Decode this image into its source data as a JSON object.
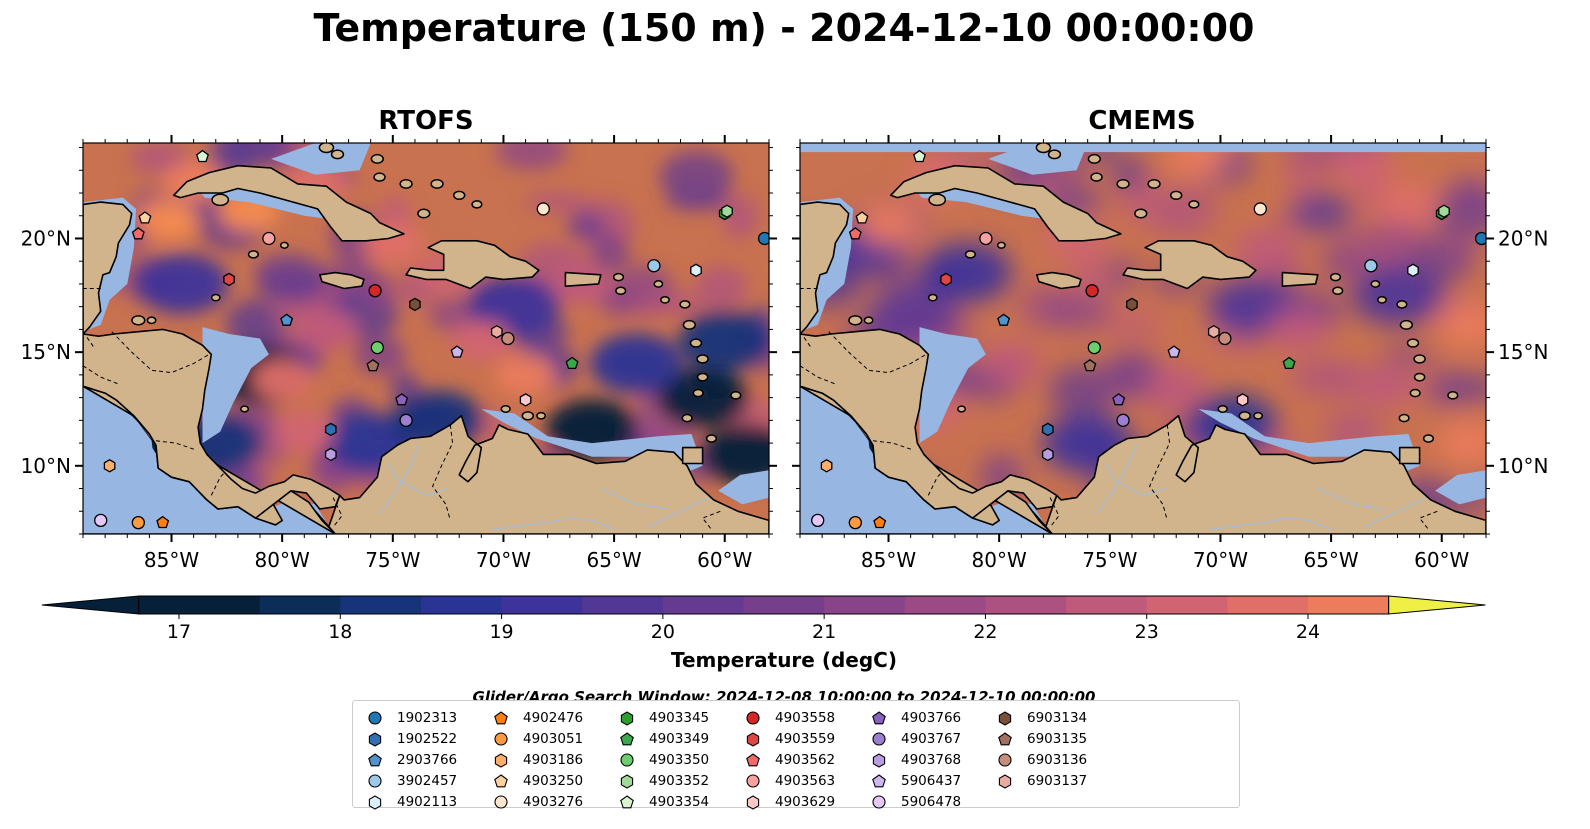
{
  "figure": {
    "title": "Temperature (150 m) - 2024-12-10 00:00:00",
    "colors": {
      "land": "#d2b48c",
      "shallow_water": "#97b6e1",
      "coast": "#000000",
      "ocean_base": "#c9724f"
    }
  },
  "chart_data": {
    "type": "heatmap",
    "panels": [
      {
        "title": "RTOFS",
        "xlim": [
          -89,
          -58
        ],
        "ylim": [
          7,
          24.2
        ],
        "warm_spots": [
          {
            "lon": -85.2,
            "lat": 20.8,
            "value": 24.5
          },
          {
            "lon": -81.5,
            "lat": 21.2,
            "value": 24.6
          },
          {
            "lon": -78.5,
            "lat": 22.3,
            "value": 23.6
          },
          {
            "lon": -75.0,
            "lat": 19.8,
            "value": 23.6
          },
          {
            "lon": -72.5,
            "lat": 18.5,
            "value": 23.2
          },
          {
            "lon": -69.0,
            "lat": 14.0,
            "value": 24.2
          },
          {
            "lon": -71.0,
            "lat": 15.5,
            "value": 23.0
          },
          {
            "lon": -80.0,
            "lat": 13.8,
            "value": 23.5
          },
          {
            "lon": -79.0,
            "lat": 11.5,
            "value": 23.0
          },
          {
            "lon": -84.0,
            "lat": 22.5,
            "value": 24.0
          },
          {
            "lon": -66.5,
            "lat": 18.0,
            "value": 22.8
          },
          {
            "lon": -78.0,
            "lat": 16.0,
            "value": 22.5
          }
        ],
        "cold_spots": [
          {
            "lon": -81.0,
            "lat": 14.0,
            "value": 17.0
          },
          {
            "lon": -83.0,
            "lat": 11.0,
            "value": 18.2
          },
          {
            "lon": -66.0,
            "lat": 11.6,
            "value": 17.0
          },
          {
            "lon": -61.0,
            "lat": 13.0,
            "value": 17.0
          },
          {
            "lon": -59.0,
            "lat": 10.5,
            "value": 17.0
          },
          {
            "lon": -60.0,
            "lat": 15.5,
            "value": 18.0
          },
          {
            "lon": -64.0,
            "lat": 14.5,
            "value": 18.5
          },
          {
            "lon": -69.5,
            "lat": 17.0,
            "value": 19.0
          },
          {
            "lon": -76.0,
            "lat": 11.0,
            "value": 18.8
          },
          {
            "lon": -84.5,
            "lat": 18.0,
            "value": 19.0
          },
          {
            "lon": -73.0,
            "lat": 12.0,
            "value": 18.0
          }
        ]
      },
      {
        "title": "CMEMS",
        "xlim": [
          -89,
          -58
        ],
        "ylim": [
          7,
          24.2
        ],
        "warm_spots": [
          {
            "lon": -85.0,
            "lat": 20.6,
            "value": 24.0
          },
          {
            "lon": -82.8,
            "lat": 22.5,
            "value": 23.8
          },
          {
            "lon": -71.0,
            "lat": 23.6,
            "value": 24.2
          },
          {
            "lon": -63.5,
            "lat": 23.2,
            "value": 23.2
          },
          {
            "lon": -61.5,
            "lat": 21.5,
            "value": 23.6
          },
          {
            "lon": -58.8,
            "lat": 16.2,
            "value": 24.0
          },
          {
            "lon": -58.8,
            "lat": 11.0,
            "value": 24.0
          },
          {
            "lon": -66.5,
            "lat": 16.0,
            "value": 22.8
          },
          {
            "lon": -83.0,
            "lat": 12.5,
            "value": 23.2
          },
          {
            "lon": -79.5,
            "lat": 14.5,
            "value": 22.5
          },
          {
            "lon": -72.0,
            "lat": 13.5,
            "value": 22.6
          },
          {
            "lon": -62.5,
            "lat": 13.5,
            "value": 22.8
          },
          {
            "lon": -76.5,
            "lat": 20.0,
            "value": 23.0
          },
          {
            "lon": -68.0,
            "lat": 19.5,
            "value": 22.5
          }
        ],
        "cold_spots": [
          {
            "lon": -81.5,
            "lat": 18.5,
            "value": 19.0
          },
          {
            "lon": -76.0,
            "lat": 11.0,
            "value": 19.0
          },
          {
            "lon": -68.5,
            "lat": 17.0,
            "value": 19.5
          },
          {
            "lon": -84.0,
            "lat": 16.5,
            "value": 20.0
          },
          {
            "lon": -62.0,
            "lat": 17.5,
            "value": 19.6
          },
          {
            "lon": -69.5,
            "lat": 11.8,
            "value": 18.6
          },
          {
            "lon": -87.0,
            "lat": 19.5,
            "value": 19.8
          }
        ]
      }
    ],
    "x_ticks": [
      {
        "lon": -85,
        "label": "85°W"
      },
      {
        "lon": -80,
        "label": "80°W"
      },
      {
        "lon": -75,
        "label": "75°W"
      },
      {
        "lon": -70,
        "label": "70°W"
      },
      {
        "lon": -65,
        "label": "65°W"
      },
      {
        "lon": -60,
        "label": "60°W"
      }
    ],
    "y_ticks": [
      {
        "lat": 10,
        "label": "10°N"
      },
      {
        "lat": 15,
        "label": "15°N"
      },
      {
        "lat": 20,
        "label": "20°N"
      }
    ],
    "colorbar": {
      "label": "Temperature (degC)",
      "min": 16.75,
      "max": 24.5,
      "step": 0.5,
      "ticks": [
        17,
        18,
        19,
        20,
        21,
        22,
        23,
        24
      ],
      "extend": "both",
      "colors": [
        "#06203a",
        "#0c2d57",
        "#17337a",
        "#2a3495",
        "#3e3399",
        "#523796",
        "#643b91",
        "#763f8c",
        "#894489",
        "#9c4a85",
        "#ad5181",
        "#c05a7b",
        "#d16472",
        "#e06f68",
        "#ec7c5c",
        "#f58b4f",
        "#f99c43",
        "#fbae3e",
        "#f8c23b",
        "#f3d73d",
        "#eff046"
      ]
    },
    "search_window": "Glider/Argo Search Window: 2024-12-08 10:00:00 to 2024-12-10 00:00:00",
    "floats": [
      {
        "id": "1902313",
        "marker": "circle",
        "color": "#1f77b4",
        "lon": -58.2,
        "lat": 20.0
      },
      {
        "id": "1902522",
        "marker": "hexagon",
        "color": "#2f6fb2",
        "lon": -77.8,
        "lat": 11.6
      },
      {
        "id": "2903766",
        "marker": "pentagon",
        "color": "#4f93cf",
        "lon": -79.8,
        "lat": 16.4
      },
      {
        "id": "3902457",
        "marker": "circle",
        "color": "#9dc9e9",
        "lon": -63.2,
        "lat": 18.8
      },
      {
        "id": "4902113",
        "marker": "hexagon",
        "color": "#dbeefa",
        "lon": -61.3,
        "lat": 18.6
      },
      {
        "id": "4902476",
        "marker": "pentagon",
        "color": "#ff7f0e",
        "lon": -85.4,
        "lat": 7.5
      },
      {
        "id": "4903051",
        "marker": "circle",
        "color": "#fd9b40",
        "lon": -86.5,
        "lat": 7.5
      },
      {
        "id": "4903186",
        "marker": "hexagon",
        "color": "#fdae6b",
        "lon": -87.8,
        "lat": 10.0
      },
      {
        "id": "4903250",
        "marker": "pentagon",
        "color": "#fdd0a2",
        "lon": -86.2,
        "lat": 20.9
      },
      {
        "id": "4903276",
        "marker": "circle",
        "color": "#fee6ce",
        "lon": -68.2,
        "lat": 21.3
      },
      {
        "id": "4903345",
        "marker": "hexagon",
        "color": "#2ca02c",
        "lon": -60.0,
        "lat": 21.1
      },
      {
        "id": "4903349",
        "marker": "pentagon",
        "color": "#38a84a",
        "lon": -66.9,
        "lat": 14.5
      },
      {
        "id": "4903350",
        "marker": "circle",
        "color": "#6dcf6b",
        "lon": -75.7,
        "lat": 15.2
      },
      {
        "id": "4903352",
        "marker": "hexagon",
        "color": "#a1d99b",
        "lon": -59.9,
        "lat": 21.2
      },
      {
        "id": "4903354",
        "marker": "pentagon",
        "color": "#d9f5d2",
        "lon": -83.6,
        "lat": 23.6
      },
      {
        "id": "4903558",
        "marker": "circle",
        "color": "#d62728",
        "lon": -75.8,
        "lat": 17.7
      },
      {
        "id": "4903559",
        "marker": "hexagon",
        "color": "#e04545",
        "lon": -82.4,
        "lat": 18.2
      },
      {
        "id": "4903562",
        "marker": "pentagon",
        "color": "#f06a6a",
        "lon": -86.5,
        "lat": 20.2
      },
      {
        "id": "4903563",
        "marker": "circle",
        "color": "#f7a1a1",
        "lon": -80.6,
        "lat": 20.0
      },
      {
        "id": "4903629",
        "marker": "hexagon",
        "color": "#fcc8c8",
        "lon": -69.0,
        "lat": 12.9
      },
      {
        "id": "4903766",
        "marker": "pentagon",
        "color": "#8a60c0",
        "lon": -74.6,
        "lat": 12.9
      },
      {
        "id": "4903767",
        "marker": "circle",
        "color": "#9b7fd0",
        "lon": -74.4,
        "lat": 12.0
      },
      {
        "id": "4903768",
        "marker": "hexagon",
        "color": "#b99de3",
        "lon": -77.8,
        "lat": 10.5
      },
      {
        "id": "5906437",
        "marker": "pentagon",
        "color": "#cdb6ee",
        "lon": -72.1,
        "lat": 15.0
      },
      {
        "id": "5906478",
        "marker": "circle",
        "color": "#e5c8f7",
        "lon": -88.2,
        "lat": 7.6
      },
      {
        "id": "6903134",
        "marker": "hexagon",
        "color": "#7a4f3a",
        "lon": -74.0,
        "lat": 17.1
      },
      {
        "id": "6903135",
        "marker": "pentagon",
        "color": "#a07060",
        "lon": -75.9,
        "lat": 14.4
      },
      {
        "id": "6903136",
        "marker": "circle",
        "color": "#c68d7d",
        "lon": -69.8,
        "lat": 15.6
      },
      {
        "id": "6903137",
        "marker": "hexagon",
        "color": "#e7ada0",
        "lon": -70.3,
        "lat": 15.9
      }
    ]
  }
}
